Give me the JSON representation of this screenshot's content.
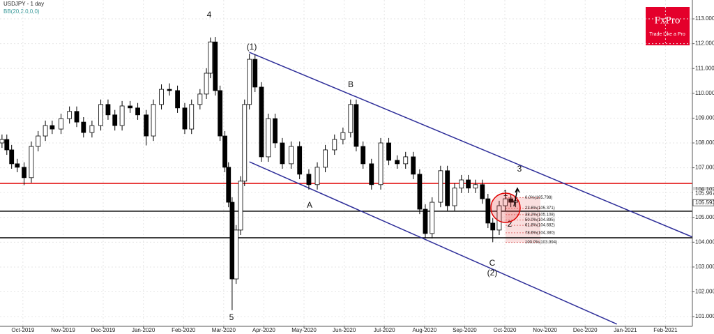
{
  "chart_data": {
    "type": "candlestick",
    "title": "USDJPY - 1 day",
    "subtitle": "BB(20,2.0,0,0)",
    "brand": "FxPro",
    "tagline": "Trade Like a Pro",
    "x": [
      -0.52,
      -0.4,
      -0.28,
      -0.14,
      0.03,
      0.21,
      0.38,
      0.56,
      0.73,
      0.95,
      1.16,
      1.34,
      1.51,
      1.72,
      1.94,
      2.12,
      2.29,
      2.47,
      2.67,
      2.86,
      3.07,
      3.25,
      3.45,
      3.65,
      3.85,
      4.03,
      4.2,
      4.41,
      4.57,
      4.67,
      4.79,
      4.91,
      5.03,
      5.12,
      5.21,
      5.31,
      5.42,
      5.52,
      5.64,
      5.78,
      5.94,
      6.11,
      6.28,
      6.46,
      6.68,
      6.89,
      7.12,
      7.33,
      7.53,
      7.76,
      7.97,
      8.16,
      8.3,
      8.47,
      8.68,
      8.91,
      9.11,
      9.32,
      9.53,
      9.72,
      9.88,
      10.02,
      10.19,
      10.4,
      10.57,
      10.75,
      10.92,
      11.09,
      11.27,
      11.44,
      11.58,
      11.7,
      11.86,
      12.01,
      12.15,
      12.27
    ],
    "open": [
      108.0,
      108.14,
      107.72,
      107.16,
      107.02,
      106.6,
      107.86,
      108.28,
      108.7,
      108.56,
      108.98,
      109.27,
      108.84,
      108.42,
      108.7,
      109.55,
      109.13,
      108.7,
      109.49,
      109.41,
      109.13,
      108.28,
      109.55,
      110.16,
      110.11,
      109.41,
      108.56,
      109.55,
      109.97,
      110.81,
      112.07,
      110.11,
      108.28,
      107.02,
      105.61,
      102.52,
      104.49,
      106.46,
      109.55,
      111.37,
      110.25,
      107.44,
      108.98,
      108.0,
      107.16,
      107.86,
      106.74,
      106.32,
      107.02,
      107.72,
      108.14,
      108.42,
      109.55,
      107.86,
      107.16,
      106.32,
      108.0,
      107.3,
      107.16,
      107.44,
      106.74,
      105.33,
      104.35,
      105.61,
      106.88,
      105.47,
      106.18,
      106.51,
      106.18,
      106.32,
      105.75,
      104.77,
      104.49,
      105.47,
      105.75,
      105.61
    ],
    "high": [
      108.34,
      108.34,
      107.92,
      107.36,
      107.22,
      108.06,
      108.48,
      108.9,
      108.9,
      109.18,
      109.47,
      109.47,
      109.04,
      108.9,
      109.75,
      109.75,
      109.33,
      109.69,
      109.69,
      109.61,
      109.33,
      109.75,
      110.36,
      110.4,
      110.31,
      109.61,
      109.75,
      110.17,
      111.01,
      112.25,
      112.27,
      110.31,
      108.48,
      107.22,
      105.81,
      104.69,
      106.66,
      109.75,
      111.6,
      111.57,
      110.45,
      109.18,
      109.18,
      108.2,
      108.06,
      108.06,
      106.94,
      107.22,
      107.92,
      108.34,
      108.62,
      109.75,
      109.75,
      108.06,
      107.36,
      108.2,
      108.2,
      107.5,
      107.64,
      107.64,
      106.94,
      105.53,
      105.81,
      107.08,
      107.08,
      106.38,
      106.71,
      106.71,
      106.52,
      106.52,
      105.95,
      104.97,
      105.67,
      105.95,
      105.95,
      105.85
    ],
    "low": [
      107.8,
      107.52,
      106.96,
      106.82,
      106.3,
      106.4,
      107.66,
      108.08,
      108.36,
      108.36,
      108.78,
      108.64,
      108.22,
      108.22,
      108.5,
      108.93,
      108.5,
      108.5,
      109.21,
      108.93,
      107.9,
      108.08,
      109.35,
      109.91,
      109.21,
      108.36,
      108.36,
      109.35,
      109.77,
      110.61,
      109.91,
      108.08,
      106.82,
      105.41,
      101.26,
      102.32,
      104.29,
      106.26,
      109.35,
      110.05,
      107.24,
      107.24,
      107.8,
      106.96,
      106.96,
      106.54,
      106.12,
      106.12,
      106.82,
      107.52,
      107.94,
      108.22,
      107.66,
      106.96,
      106.12,
      106.12,
      107.1,
      106.96,
      106.96,
      106.54,
      105.13,
      104.15,
      104.15,
      105.41,
      105.27,
      105.27,
      105.98,
      105.98,
      105.98,
      105.55,
      104.57,
      104.0,
      104.29,
      105.27,
      105.41,
      105.41
    ],
    "close": [
      108.14,
      107.72,
      107.16,
      107.02,
      106.6,
      107.86,
      108.28,
      108.7,
      108.56,
      108.98,
      109.27,
      108.84,
      108.42,
      108.7,
      109.55,
      109.13,
      108.7,
      109.49,
      109.41,
      109.13,
      108.28,
      109.55,
      110.16,
      110.11,
      109.41,
      108.56,
      109.55,
      109.97,
      110.81,
      112.07,
      110.11,
      108.28,
      107.02,
      105.61,
      102.52,
      104.49,
      106.46,
      109.55,
      111.37,
      110.25,
      107.44,
      108.98,
      108.0,
      107.16,
      107.86,
      106.74,
      106.32,
      107.02,
      107.72,
      108.14,
      108.42,
      109.55,
      107.86,
      107.16,
      106.32,
      108.0,
      107.3,
      107.16,
      107.44,
      106.74,
      105.33,
      104.35,
      105.61,
      106.88,
      105.47,
      106.18,
      106.51,
      106.18,
      106.32,
      105.75,
      104.77,
      104.49,
      105.47,
      105.75,
      105.61,
      105.67
    ],
    "xlim": [
      -0.57,
      16.67
    ],
    "xticks": [
      {
        "value": 0,
        "label": "Oct-2019"
      },
      {
        "value": 1,
        "label": "Nov-2019"
      },
      {
        "value": 2,
        "label": "Dec-2019"
      },
      {
        "value": 3,
        "label": "Jan-2020"
      },
      {
        "value": 4,
        "label": "Feb-2020"
      },
      {
        "value": 5,
        "label": "Mar-2020"
      },
      {
        "value": 6,
        "label": "Apr-2020"
      },
      {
        "value": 7,
        "label": "May-2020"
      },
      {
        "value": 8,
        "label": "Jun-2020"
      },
      {
        "value": 9,
        "label": "Jul-2020"
      },
      {
        "value": 10,
        "label": "Aug-2020"
      },
      {
        "value": 11,
        "label": "Sep-2020"
      },
      {
        "value": 12,
        "label": "Oct-2020"
      },
      {
        "value": 13,
        "label": "Nov-2020"
      },
      {
        "value": 14,
        "label": "Dec-2020"
      },
      {
        "value": 15,
        "label": "Jan-2021"
      },
      {
        "value": 16,
        "label": "Feb-2021"
      }
    ],
    "ylim": [
      100.61,
      113.76
    ],
    "yticks": [
      {
        "value": 101,
        "label": "101.000"
      },
      {
        "value": 102,
        "label": "102.000"
      },
      {
        "value": 103,
        "label": "103.000"
      },
      {
        "value": 104,
        "label": "104.000"
      },
      {
        "value": 105,
        "label": "105.000"
      },
      {
        "value": 106,
        "label": "106.000"
      },
      {
        "value": 107,
        "label": "107.000"
      },
      {
        "value": 108,
        "label": "108.000"
      },
      {
        "value": 109,
        "label": "109.000"
      },
      {
        "value": 110,
        "label": "110.000"
      },
      {
        "value": 111,
        "label": "111.000"
      },
      {
        "value": 112,
        "label": "112.000"
      },
      {
        "value": 113,
        "label": "113.000"
      }
    ],
    "grid": true,
    "up_color": "#ffffff",
    "down_color": "#000000",
    "levels": [
      {
        "value": 106.37,
        "color": "#e00000"
      },
      {
        "value": 105.25,
        "color": "#000000"
      },
      {
        "value": 104.18,
        "color": "#000000"
      }
    ],
    "channel": {
      "color": "#2e2e99",
      "lines": [
        {
          "x": [
            5.64,
            16.67
          ],
          "y": [
            111.65,
            104.21
          ]
        },
        {
          "x": [
            5.64,
            14.79
          ],
          "y": [
            107.24,
            100.7
          ]
        }
      ]
    },
    "price_labels": [
      {
        "value": 106.103,
        "label": "106.103"
      },
      {
        "value": 105.967,
        "label": "105.967"
      },
      {
        "value": 105.593,
        "label": "105.593"
      }
    ],
    "fibonacci": [
      {
        "value": 105.798,
        "label": "0.0%(105.798)"
      },
      {
        "value": 105.371,
        "label": "23.6%(105.371)"
      },
      {
        "value": 105.108,
        "label": "38.2%(105.108)"
      },
      {
        "value": 104.895,
        "label": "50.0%(104.895)"
      },
      {
        "value": 104.682,
        "label": "61.8%(104.682)"
      },
      {
        "value": 104.38,
        "label": "78.6%(104.380)"
      },
      {
        "value": 103.994,
        "label": "100.0%(103.994)"
      }
    ],
    "wave_labels": [
      "4",
      "(1)",
      "B",
      "3",
      "A",
      "5",
      "1",
      "2",
      "C",
      "(2)"
    ]
  }
}
